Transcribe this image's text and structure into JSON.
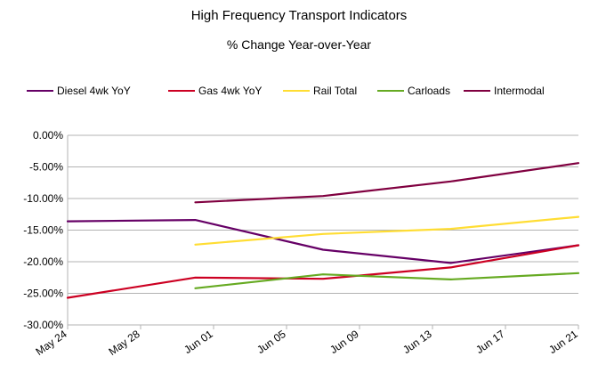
{
  "chart_data": {
    "type": "line",
    "title": "High Frequency Transport Indicators",
    "subtitle": "% Change Year-over-Year",
    "xlabel": "",
    "ylabel": "",
    "ylim": [
      -30,
      0
    ],
    "y_ticks": [
      "0.00%",
      "-5.00%",
      "-10.00%",
      "-15.00%",
      "-20.00%",
      "-25.00%",
      "-30.00%"
    ],
    "y_tick_values": [
      0,
      -5,
      -10,
      -15,
      -20,
      -25,
      -30
    ],
    "x_range_days": [
      0,
      28
    ],
    "x_ticks": [
      "May 24",
      "May 28",
      "Jun 01",
      "Jun 05",
      "Jun 09",
      "Jun 13",
      "Jun 17",
      "Jun 21"
    ],
    "x_tick_days": [
      0,
      4,
      8,
      12,
      16,
      20,
      24,
      28
    ],
    "legend_position": "top",
    "grid": "horizontal",
    "series": [
      {
        "name": "Diesel 4wk YoY",
        "color": "#660066",
        "points": [
          {
            "day": 0,
            "value": -13.6
          },
          {
            "day": 7,
            "value": -13.4
          },
          {
            "day": 14,
            "value": -18.1
          },
          {
            "day": 21,
            "value": -20.2
          },
          {
            "day": 28,
            "value": -17.4
          }
        ]
      },
      {
        "name": "Gas 4wk YoY",
        "color": "#cc0022",
        "points": [
          {
            "day": 0,
            "value": -25.7
          },
          {
            "day": 7,
            "value": -22.5
          },
          {
            "day": 14,
            "value": -22.7
          },
          {
            "day": 21,
            "value": -20.9
          },
          {
            "day": 28,
            "value": -17.4
          }
        ]
      },
      {
        "name": "Rail Total",
        "color": "#ffdd33",
        "points": [
          {
            "day": 7,
            "value": -17.3
          },
          {
            "day": 14,
            "value": -15.6
          },
          {
            "day": 21,
            "value": -14.8
          },
          {
            "day": 28,
            "value": -12.9
          }
        ]
      },
      {
        "name": "Carloads",
        "color": "#66aa22",
        "points": [
          {
            "day": 7,
            "value": -24.2
          },
          {
            "day": 14,
            "value": -22.0
          },
          {
            "day": 21,
            "value": -22.8
          },
          {
            "day": 28,
            "value": -21.8
          }
        ]
      },
      {
        "name": "Intermodal",
        "color": "#800040",
        "points": [
          {
            "day": 7,
            "value": -10.6
          },
          {
            "day": 14,
            "value": -9.6
          },
          {
            "day": 21,
            "value": -7.3
          },
          {
            "day": 28,
            "value": -4.4
          }
        ]
      }
    ]
  }
}
